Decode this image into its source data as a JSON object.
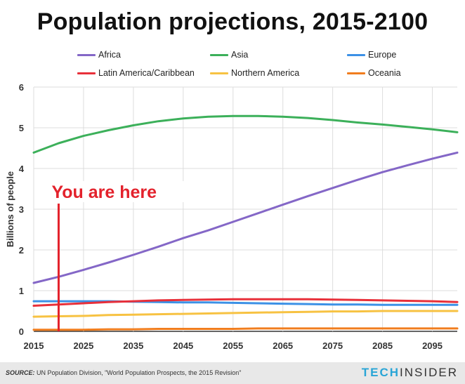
{
  "header": {
    "title": "Population projections, 2015-2100"
  },
  "chart_data": {
    "type": "line",
    "title": "Population projections, 2015-2100",
    "xlabel": "",
    "ylabel": "Billions of people",
    "xlim": [
      2015,
      2100
    ],
    "ylim": [
      0,
      6
    ],
    "x_ticks": [
      "2015",
      "2025",
      "2035",
      "2045",
      "2055",
      "2065",
      "2075",
      "2085",
      "2095"
    ],
    "y_ticks": [
      "0",
      "1",
      "2",
      "3",
      "4",
      "5",
      "6"
    ],
    "grid": true,
    "legend_position": "top",
    "x": [
      2015,
      2020,
      2025,
      2030,
      2035,
      2040,
      2045,
      2050,
      2055,
      2060,
      2065,
      2070,
      2075,
      2080,
      2085,
      2090,
      2095,
      2100
    ],
    "series": [
      {
        "name": "Africa",
        "color": "#8467c7",
        "values": [
          1.19,
          1.34,
          1.51,
          1.69,
          1.88,
          2.08,
          2.29,
          2.48,
          2.69,
          2.9,
          3.11,
          3.32,
          3.52,
          3.72,
          3.91,
          4.08,
          4.24,
          4.39
        ]
      },
      {
        "name": "Asia",
        "color": "#3cb05a",
        "values": [
          4.39,
          4.62,
          4.8,
          4.94,
          5.06,
          5.16,
          5.23,
          5.27,
          5.29,
          5.29,
          5.27,
          5.24,
          5.19,
          5.13,
          5.08,
          5.02,
          4.96,
          4.89
        ]
      },
      {
        "name": "Europe",
        "color": "#3c91e6",
        "values": [
          0.74,
          0.74,
          0.74,
          0.74,
          0.73,
          0.72,
          0.71,
          0.71,
          0.7,
          0.69,
          0.68,
          0.67,
          0.66,
          0.66,
          0.65,
          0.65,
          0.65,
          0.65
        ]
      },
      {
        "name": "Latin America/Caribbean",
        "color": "#e8303a",
        "values": [
          0.63,
          0.66,
          0.69,
          0.72,
          0.74,
          0.76,
          0.77,
          0.78,
          0.79,
          0.79,
          0.79,
          0.79,
          0.78,
          0.77,
          0.76,
          0.75,
          0.74,
          0.72
        ]
      },
      {
        "name": "Northern America",
        "color": "#f7c242",
        "values": [
          0.36,
          0.37,
          0.38,
          0.4,
          0.41,
          0.42,
          0.43,
          0.44,
          0.45,
          0.46,
          0.47,
          0.48,
          0.49,
          0.49,
          0.5,
          0.5,
          0.5,
          0.5
        ]
      },
      {
        "name": "Oceania",
        "color": "#f07d1e",
        "values": [
          0.04,
          0.04,
          0.04,
          0.05,
          0.05,
          0.06,
          0.06,
          0.06,
          0.06,
          0.07,
          0.07,
          0.07,
          0.07,
          0.07,
          0.07,
          0.07,
          0.07,
          0.07
        ]
      }
    ],
    "annotation": {
      "text": "You are here",
      "x": 2020,
      "color": "#e3222c"
    }
  },
  "footer": {
    "source_label": "SOURCE:",
    "source_text": "UN Population Division, \"World Population Prospects, the 2015 Revision\"",
    "brand_tech": "TECH",
    "brand_insider": "INSIDER"
  }
}
